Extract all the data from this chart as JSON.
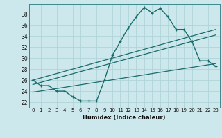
{
  "title": "",
  "xlabel": "Humidex (Indice chaleur)",
  "bg_color": "#cde8ec",
  "grid_color": "#aed4d8",
  "line_color": "#1a6b6b",
  "xlim": [
    -0.5,
    23.5
  ],
  "ylim": [
    21.0,
    39.8
  ],
  "xticks": [
    0,
    1,
    2,
    3,
    4,
    5,
    6,
    7,
    8,
    9,
    10,
    11,
    12,
    13,
    14,
    15,
    16,
    17,
    18,
    19,
    20,
    21,
    22,
    23
  ],
  "yticks": [
    22,
    24,
    26,
    28,
    30,
    32,
    34,
    36,
    38
  ],
  "main_x": [
    0,
    1,
    2,
    3,
    4,
    5,
    6,
    7,
    8,
    9,
    10,
    11,
    12,
    13,
    14,
    15,
    16,
    17,
    18,
    19,
    20,
    21,
    22,
    23
  ],
  "main_y": [
    26.0,
    25.0,
    25.0,
    24.0,
    24.0,
    23.0,
    22.2,
    22.2,
    22.2,
    26.0,
    30.5,
    33.0,
    35.5,
    37.5,
    39.2,
    38.2,
    39.0,
    37.5,
    35.2,
    35.2,
    33.0,
    29.5,
    29.5,
    28.5
  ],
  "line2_x": [
    0,
    23
  ],
  "line2_y": [
    26.0,
    35.2
  ],
  "line3_x": [
    0,
    23
  ],
  "line3_y": [
    25.2,
    34.2
  ],
  "line4_x": [
    0,
    23
  ],
  "line4_y": [
    23.8,
    29.0
  ]
}
